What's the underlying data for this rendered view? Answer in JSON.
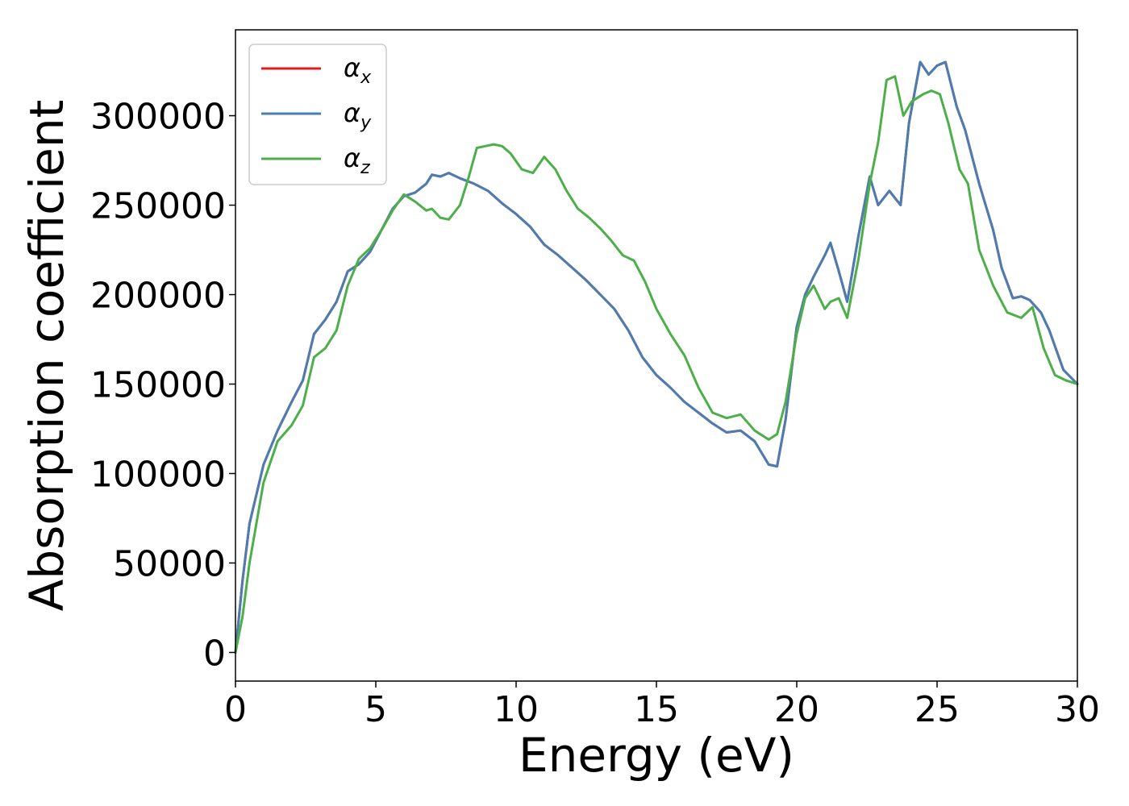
{
  "chart_data": {
    "type": "line",
    "title": "",
    "xlabel": "Energy (eV)",
    "ylabel": "Absorption coefficient",
    "xlim": [
      0,
      30
    ],
    "ylim": [
      -16000,
      348000
    ],
    "xticks": [
      0,
      5,
      10,
      15,
      20,
      25,
      30
    ],
    "xtick_labels": [
      "0",
      "5",
      "10",
      "15",
      "20",
      "25",
      "30"
    ],
    "yticks": [
      0,
      50000,
      100000,
      150000,
      200000,
      250000,
      300000
    ],
    "ytick_labels": [
      "0",
      "50000",
      "100000",
      "150000",
      "200000",
      "250000",
      "300000"
    ],
    "grid": false,
    "legend_position": "top-left",
    "series": [
      {
        "name": "α_x",
        "legend_main": "α",
        "legend_sub": "x",
        "color": "#e41a1c",
        "x": [
          0,
          0.25,
          0.5,
          1,
          1.5,
          2,
          2.4,
          2.8,
          3.2,
          3.6,
          4,
          4.4,
          4.8,
          5.2,
          5.6,
          6,
          6.4,
          6.8,
          7,
          7.3,
          7.6,
          8,
          8.5,
          9,
          9.5,
          10,
          10.5,
          11,
          11.5,
          12,
          12.5,
          13,
          13.5,
          14,
          14.5,
          15,
          15.5,
          16,
          16.5,
          17,
          17.5,
          18,
          18.5,
          19,
          19.3,
          19.6,
          20,
          20.3,
          20.6,
          21,
          21.2,
          21.5,
          21.8,
          22.2,
          22.6,
          22.9,
          23.3,
          23.7,
          24,
          24.4,
          24.7,
          25,
          25.3,
          25.7,
          26,
          26.5,
          27,
          27.3,
          27.7,
          28,
          28.3,
          28.7,
          29,
          29.5,
          30
        ],
        "y": [
          0,
          40000,
          72000,
          105000,
          124000,
          140000,
          152000,
          178000,
          186000,
          196000,
          213000,
          217000,
          224000,
          236000,
          248000,
          255000,
          257000,
          262000,
          267000,
          266000,
          268000,
          265000,
          262000,
          258000,
          251000,
          245000,
          238000,
          228000,
          222000,
          215000,
          208000,
          200000,
          192000,
          180000,
          165000,
          155000,
          148000,
          140000,
          134000,
          128000,
          123000,
          124000,
          118000,
          105000,
          104000,
          130000,
          182000,
          200000,
          210000,
          222000,
          229000,
          213000,
          196000,
          233000,
          266000,
          250000,
          258000,
          250000,
          296000,
          330000,
          323000,
          328000,
          330000,
          305000,
          292000,
          262000,
          236000,
          215000,
          198000,
          199000,
          197000,
          190000,
          180000,
          158000,
          150000
        ]
      },
      {
        "name": "α_y",
        "legend_main": "α",
        "legend_sub": "y",
        "color": "#4a7eb2",
        "x": [
          0,
          0.25,
          0.5,
          1,
          1.5,
          2,
          2.4,
          2.8,
          3.2,
          3.6,
          4,
          4.4,
          4.8,
          5.2,
          5.6,
          6,
          6.4,
          6.8,
          7,
          7.3,
          7.6,
          8,
          8.5,
          9,
          9.5,
          10,
          10.5,
          11,
          11.5,
          12,
          12.5,
          13,
          13.5,
          14,
          14.5,
          15,
          15.5,
          16,
          16.5,
          17,
          17.5,
          18,
          18.5,
          19,
          19.3,
          19.6,
          20,
          20.3,
          20.6,
          21,
          21.2,
          21.5,
          21.8,
          22.2,
          22.6,
          22.9,
          23.3,
          23.7,
          24,
          24.4,
          24.7,
          25,
          25.3,
          25.7,
          26,
          26.5,
          27,
          27.3,
          27.7,
          28,
          28.3,
          28.7,
          29,
          29.5,
          30
        ],
        "y": [
          0,
          40000,
          72000,
          105000,
          124000,
          140000,
          152000,
          178000,
          186000,
          196000,
          213000,
          217000,
          224000,
          236000,
          248000,
          255000,
          257000,
          262000,
          267000,
          266000,
          268000,
          265000,
          262000,
          258000,
          251000,
          245000,
          238000,
          228000,
          222000,
          215000,
          208000,
          200000,
          192000,
          180000,
          165000,
          155000,
          148000,
          140000,
          134000,
          128000,
          123000,
          124000,
          118000,
          105000,
          104000,
          130000,
          182000,
          200000,
          210000,
          222000,
          229000,
          213000,
          196000,
          233000,
          266000,
          250000,
          258000,
          250000,
          296000,
          330000,
          323000,
          328000,
          330000,
          305000,
          292000,
          262000,
          236000,
          215000,
          198000,
          199000,
          197000,
          190000,
          180000,
          158000,
          150000
        ]
      },
      {
        "name": "α_z",
        "legend_main": "α",
        "legend_sub": "z",
        "color": "#4daf4a",
        "x": [
          0,
          0.25,
          0.5,
          1,
          1.5,
          2,
          2.4,
          2.8,
          3.2,
          3.6,
          4,
          4.4,
          4.8,
          5.2,
          5.6,
          6,
          6.4,
          6.8,
          7,
          7.3,
          7.6,
          8,
          8.3,
          8.6,
          8.9,
          9.2,
          9.5,
          9.8,
          10.2,
          10.6,
          11,
          11.4,
          11.8,
          12.2,
          12.6,
          13,
          13.4,
          13.8,
          14.2,
          14.6,
          15,
          15.5,
          16,
          16.5,
          17,
          17.5,
          18,
          18.5,
          19,
          19.3,
          19.6,
          20,
          20.3,
          20.6,
          21,
          21.2,
          21.5,
          21.8,
          22.2,
          22.6,
          22.9,
          23.2,
          23.5,
          23.8,
          24.1,
          24.5,
          24.8,
          25.1,
          25.4,
          25.8,
          26.1,
          26.5,
          27,
          27.5,
          28,
          28.4,
          28.8,
          29.2,
          29.6,
          30
        ],
        "y": [
          0,
          20000,
          50000,
          95000,
          118000,
          127000,
          138000,
          165000,
          170000,
          180000,
          205000,
          220000,
          226000,
          236000,
          247000,
          256000,
          252000,
          247000,
          248000,
          243000,
          242000,
          250000,
          265000,
          282000,
          283000,
          284000,
          283000,
          279000,
          270000,
          268000,
          277000,
          270000,
          258000,
          248000,
          243000,
          237000,
          230000,
          222000,
          219000,
          207000,
          192000,
          178000,
          166000,
          148000,
          134000,
          131000,
          133000,
          124000,
          119000,
          122000,
          140000,
          178000,
          198000,
          205000,
          192000,
          196000,
          198000,
          187000,
          220000,
          262000,
          285000,
          320000,
          322000,
          300000,
          308000,
          312000,
          314000,
          312000,
          296000,
          270000,
          262000,
          225000,
          205000,
          190000,
          187000,
          193000,
          170000,
          155000,
          152000,
          150000
        ]
      }
    ]
  }
}
